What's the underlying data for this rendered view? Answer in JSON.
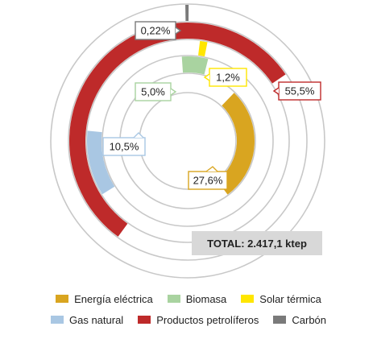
{
  "chart_data": {
    "type": "concentric-ring",
    "total_label": "TOTAL: 2.417,1 ktep",
    "series": [
      {
        "name": "Energía eléctrica",
        "value": 27.6,
        "label": "27,6%",
        "color": "#D9A520"
      },
      {
        "name": "Biomasa",
        "value": 5.0,
        "label": "5,0%",
        "color": "#A9D3A0"
      },
      {
        "name": "Solar térmica",
        "value": 1.2,
        "label": "1,2%",
        "color": "#FFE600"
      },
      {
        "name": "Gas natural",
        "value": 10.5,
        "label": "10,5%",
        "color": "#A9C7E3"
      },
      {
        "name": "Productos petrolíferos",
        "value": 55.5,
        "label": "55,5%",
        "color": "#BE2A2A"
      },
      {
        "name": "Carbón",
        "value": 0.22,
        "label": "0,22%",
        "color": "#7A7A7A"
      }
    ],
    "legend_rows": [
      [
        "Energía eléctrica",
        "Biomasa",
        "Solar térmica"
      ],
      [
        "Gas natural",
        "Productos petrolíferos",
        "Carbón"
      ]
    ]
  }
}
